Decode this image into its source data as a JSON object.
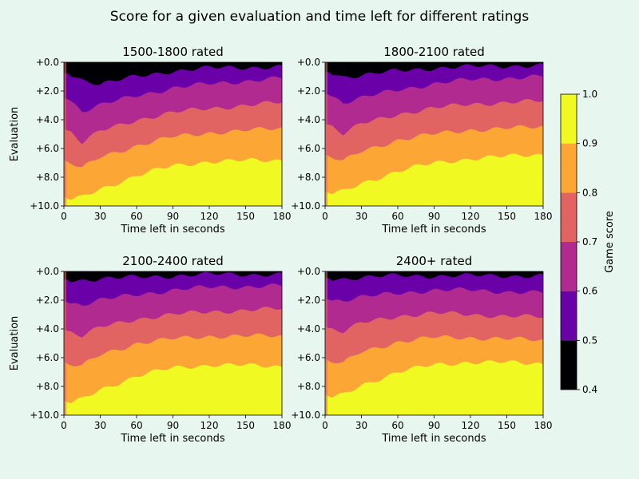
{
  "figure": {
    "title": "Score for a given evaluation and time left for different ratings",
    "background": "#e8f6f0"
  },
  "chart_data": [
    {
      "type": "heatmap",
      "title": "1500-1800 rated",
      "xlabel": "Time left in seconds",
      "ylabel": "Evaluation",
      "xlim": [
        0,
        180
      ],
      "ylim": [
        0,
        10
      ],
      "y_inverted": true,
      "xticks": [
        "0",
        "30",
        "60",
        "90",
        "120",
        "150",
        "180"
      ],
      "yticks": [
        "+0.0",
        "+2.0",
        "+4.0",
        "+6.0",
        "+8.0",
        "+10.0"
      ],
      "contour_boundaries": [
        {
          "level": 0.5,
          "eval_at_time": [
            [
              5,
              0.8
            ],
            [
              15,
              1.2
            ],
            [
              30,
              1.5
            ],
            [
              60,
              1.0
            ],
            [
              90,
              0.6
            ],
            [
              120,
              0.4
            ],
            [
              180,
              0.3
            ]
          ]
        },
        {
          "level": 0.6,
          "eval_at_time": [
            [
              5,
              2.6
            ],
            [
              15,
              3.4
            ],
            [
              30,
              3.0
            ],
            [
              60,
              2.3
            ],
            [
              90,
              1.8
            ],
            [
              120,
              1.5
            ],
            [
              180,
              1.1
            ]
          ]
        },
        {
          "level": 0.7,
          "eval_at_time": [
            [
              5,
              4.8
            ],
            [
              15,
              5.6
            ],
            [
              30,
              4.8
            ],
            [
              60,
              4.0
            ],
            [
              90,
              3.5
            ],
            [
              120,
              3.2
            ],
            [
              180,
              2.8
            ]
          ]
        },
        {
          "level": 0.8,
          "eval_at_time": [
            [
              5,
              7.0
            ],
            [
              15,
              7.4
            ],
            [
              30,
              6.6
            ],
            [
              60,
              5.8
            ],
            [
              90,
              5.2
            ],
            [
              120,
              4.9
            ],
            [
              180,
              4.6
            ]
          ]
        },
        {
          "level": 0.9,
          "eval_at_time": [
            [
              5,
              9.6
            ],
            [
              15,
              9.4
            ],
            [
              30,
              8.8
            ],
            [
              60,
              7.9
            ],
            [
              90,
              7.2
            ],
            [
              120,
              6.9
            ],
            [
              180,
              6.8
            ]
          ]
        }
      ]
    },
    {
      "type": "heatmap",
      "title": "1800-2100 rated",
      "xlabel": "Time left in seconds",
      "ylabel": "",
      "xlim": [
        0,
        180
      ],
      "ylim": [
        0,
        10
      ],
      "y_inverted": true,
      "xticks": [
        "0",
        "30",
        "60",
        "90",
        "120",
        "150",
        "180"
      ],
      "yticks": [
        "+0.0",
        "+2.0",
        "+4.0",
        "+6.0",
        "+8.0",
        "+10.0"
      ],
      "contour_boundaries": [
        {
          "level": 0.5,
          "eval_at_time": [
            [
              5,
              0.7
            ],
            [
              15,
              1.0
            ],
            [
              30,
              0.9
            ],
            [
              60,
              0.6
            ],
            [
              90,
              0.4
            ],
            [
              120,
              0.3
            ],
            [
              180,
              0.2
            ]
          ]
        },
        {
          "level": 0.6,
          "eval_at_time": [
            [
              5,
              2.3
            ],
            [
              15,
              2.8
            ],
            [
              30,
              2.5
            ],
            [
              60,
              1.9
            ],
            [
              90,
              1.5
            ],
            [
              120,
              1.2
            ],
            [
              180,
              1.0
            ]
          ]
        },
        {
          "level": 0.7,
          "eval_at_time": [
            [
              5,
              4.4
            ],
            [
              15,
              5.0
            ],
            [
              30,
              4.3
            ],
            [
              60,
              3.6
            ],
            [
              90,
              3.2
            ],
            [
              120,
              2.9
            ],
            [
              180,
              2.7
            ]
          ]
        },
        {
          "level": 0.8,
          "eval_at_time": [
            [
              5,
              6.6
            ],
            [
              15,
              6.9
            ],
            [
              30,
              6.2
            ],
            [
              60,
              5.4
            ],
            [
              90,
              5.0
            ],
            [
              120,
              4.7
            ],
            [
              180,
              4.5
            ]
          ]
        },
        {
          "level": 0.9,
          "eval_at_time": [
            [
              5,
              9.2
            ],
            [
              15,
              9.0
            ],
            [
              30,
              8.4
            ],
            [
              60,
              7.6
            ],
            [
              90,
              7.0
            ],
            [
              120,
              6.7
            ],
            [
              180,
              6.4
            ]
          ]
        }
      ]
    },
    {
      "type": "heatmap",
      "title": "2100-2400 rated",
      "xlabel": "Time left in seconds",
      "ylabel": "Evaluation",
      "xlim": [
        0,
        180
      ],
      "ylim": [
        0,
        10
      ],
      "y_inverted": true,
      "xticks": [
        "0",
        "30",
        "60",
        "90",
        "120",
        "150",
        "180"
      ],
      "yticks": [
        "+0.0",
        "+2.0",
        "+4.0",
        "+6.0",
        "+8.0",
        "+10.0"
      ],
      "contour_boundaries": [
        {
          "level": 0.5,
          "eval_at_time": [
            [
              5,
              0.6
            ],
            [
              15,
              0.6
            ],
            [
              30,
              0.5
            ],
            [
              60,
              0.4
            ],
            [
              90,
              0.3
            ],
            [
              120,
              0.2
            ],
            [
              180,
              0.2
            ]
          ]
        },
        {
          "level": 0.6,
          "eval_at_time": [
            [
              5,
              2.2
            ],
            [
              15,
              2.3
            ],
            [
              30,
              2.0
            ],
            [
              60,
              1.6
            ],
            [
              90,
              1.3
            ],
            [
              120,
              1.1
            ],
            [
              180,
              1.0
            ]
          ]
        },
        {
          "level": 0.7,
          "eval_at_time": [
            [
              5,
              4.2
            ],
            [
              15,
              4.5
            ],
            [
              30,
              3.9
            ],
            [
              60,
              3.3
            ],
            [
              90,
              3.0
            ],
            [
              120,
              2.8
            ],
            [
              180,
              2.6
            ]
          ]
        },
        {
          "level": 0.8,
          "eval_at_time": [
            [
              5,
              6.5
            ],
            [
              15,
              6.6
            ],
            [
              30,
              5.8
            ],
            [
              60,
              5.0
            ],
            [
              90,
              4.7
            ],
            [
              120,
              4.5
            ],
            [
              180,
              4.5
            ]
          ]
        },
        {
          "level": 0.9,
          "eval_at_time": [
            [
              5,
              9.2
            ],
            [
              15,
              8.9
            ],
            [
              30,
              8.2
            ],
            [
              60,
              7.3
            ],
            [
              90,
              6.7
            ],
            [
              120,
              6.5
            ],
            [
              180,
              6.6
            ]
          ]
        }
      ]
    },
    {
      "type": "heatmap",
      "title": "2400+ rated",
      "xlabel": "Time left in seconds",
      "ylabel": "",
      "xlim": [
        0,
        180
      ],
      "ylim": [
        0,
        10
      ],
      "y_inverted": true,
      "xticks": [
        "0",
        "30",
        "60",
        "90",
        "120",
        "150",
        "180"
      ],
      "yticks": [
        "+0.0",
        "+2.0",
        "+4.0",
        "+6.0",
        "+8.0",
        "+10.0"
      ],
      "contour_boundaries": [
        {
          "level": 0.5,
          "eval_at_time": [
            [
              5,
              0.5
            ],
            [
              15,
              0.5
            ],
            [
              30,
              0.4
            ],
            [
              60,
              0.3
            ],
            [
              90,
              0.3
            ],
            [
              120,
              0.3
            ],
            [
              180,
              0.3
            ]
          ]
        },
        {
          "level": 0.6,
          "eval_at_time": [
            [
              5,
              2.0
            ],
            [
              15,
              2.0
            ],
            [
              30,
              1.8
            ],
            [
              60,
              1.5
            ],
            [
              90,
              1.3
            ],
            [
              120,
              1.3
            ],
            [
              180,
              1.5
            ]
          ]
        },
        {
          "level": 0.7,
          "eval_at_time": [
            [
              5,
              4.0
            ],
            [
              15,
              4.2
            ],
            [
              30,
              3.6
            ],
            [
              60,
              3.1
            ],
            [
              90,
              2.9
            ],
            [
              120,
              3.0
            ],
            [
              180,
              3.2
            ]
          ]
        },
        {
          "level": 0.8,
          "eval_at_time": [
            [
              5,
              6.3
            ],
            [
              15,
              6.4
            ],
            [
              30,
              5.6
            ],
            [
              60,
              4.9
            ],
            [
              90,
              4.6
            ],
            [
              120,
              4.6
            ],
            [
              180,
              4.8
            ]
          ]
        },
        {
          "level": 0.9,
          "eval_at_time": [
            [
              5,
              8.8
            ],
            [
              15,
              8.6
            ],
            [
              30,
              7.9
            ],
            [
              60,
              7.0
            ],
            [
              90,
              6.5
            ],
            [
              120,
              6.3
            ],
            [
              180,
              6.4
            ]
          ]
        }
      ]
    }
  ],
  "colorbar": {
    "label": "Game score",
    "bounds": [
      0.4,
      0.5,
      0.6,
      0.7,
      0.8,
      0.9,
      1.0
    ],
    "tick_labels": [
      "0.4",
      "0.5",
      "0.6",
      "0.7",
      "0.8",
      "0.9",
      "1.0"
    ],
    "colors": [
      "#000004",
      "#6a00a8",
      "#b12a90",
      "#e16462",
      "#fca636",
      "#f0f921"
    ]
  }
}
